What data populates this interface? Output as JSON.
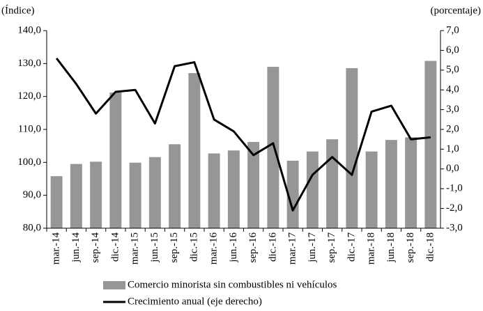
{
  "chart_data": {
    "type": "bar-line",
    "y_label": "(Índice)",
    "y2_label": "(porcentaje)",
    "categories": [
      "mar.-14",
      "jun.-14",
      "sep.-14",
      "dic.-14",
      "mar.-15",
      "jun.-15",
      "sep.-15",
      "dic.-15",
      "mar.-16",
      "jun.-16",
      "sep.-16",
      "dic.-16",
      "mar.-17",
      "jun.-17",
      "sep.-17",
      "dic.-17",
      "mar.-18",
      "jun.-18",
      "sep.-18",
      "dic.-18"
    ],
    "series": [
      {
        "name": "Comercio minorista sin combustibles ni vehículos",
        "type": "bar",
        "color": "#969696",
        "values": [
          95.8,
          99.5,
          100.2,
          121.2,
          99.9,
          101.6,
          105.5,
          127.1,
          102.7,
          103.6,
          106.2,
          129.0,
          100.5,
          103.3,
          107.0,
          128.6,
          103.3,
          106.8,
          107.6,
          130.8
        ]
      },
      {
        "name": "Crecimiento anual (eje derecho)",
        "type": "line",
        "axis": "y2",
        "color": "#000000",
        "values": [
          5.6,
          4.3,
          2.8,
          3.9,
          4.0,
          2.3,
          5.2,
          5.4,
          2.5,
          1.9,
          0.7,
          1.3,
          -2.1,
          -0.3,
          0.6,
          -0.3,
          2.9,
          3.2,
          1.5,
          1.6
        ]
      }
    ],
    "ylim": [
      80,
      140
    ],
    "yticks": [
      {
        "value": 80,
        "label": "80,0"
      },
      {
        "value": 90,
        "label": "90,0"
      },
      {
        "value": 100,
        "label": "100,0"
      },
      {
        "value": 110,
        "label": "110,0"
      },
      {
        "value": 120,
        "label": "120,0"
      },
      {
        "value": 130,
        "label": "130,0"
      },
      {
        "value": 140,
        "label": "140,0"
      }
    ],
    "y2lim": [
      -3,
      7
    ],
    "y2ticks": [
      {
        "value": -3,
        "label": "-3,0"
      },
      {
        "value": -2,
        "label": "-2,0"
      },
      {
        "value": -1,
        "label": "-1,0"
      },
      {
        "value": 0,
        "label": "0,0"
      },
      {
        "value": 1,
        "label": "1,0"
      },
      {
        "value": 2,
        "label": "2,0"
      },
      {
        "value": 3,
        "label": "3,0"
      },
      {
        "value": 4,
        "label": "4,0"
      },
      {
        "value": 5,
        "label": "5,0"
      },
      {
        "value": 6,
        "label": "6,0"
      },
      {
        "value": 7,
        "label": "7,0"
      }
    ],
    "grid": false,
    "legend": "bottom"
  }
}
